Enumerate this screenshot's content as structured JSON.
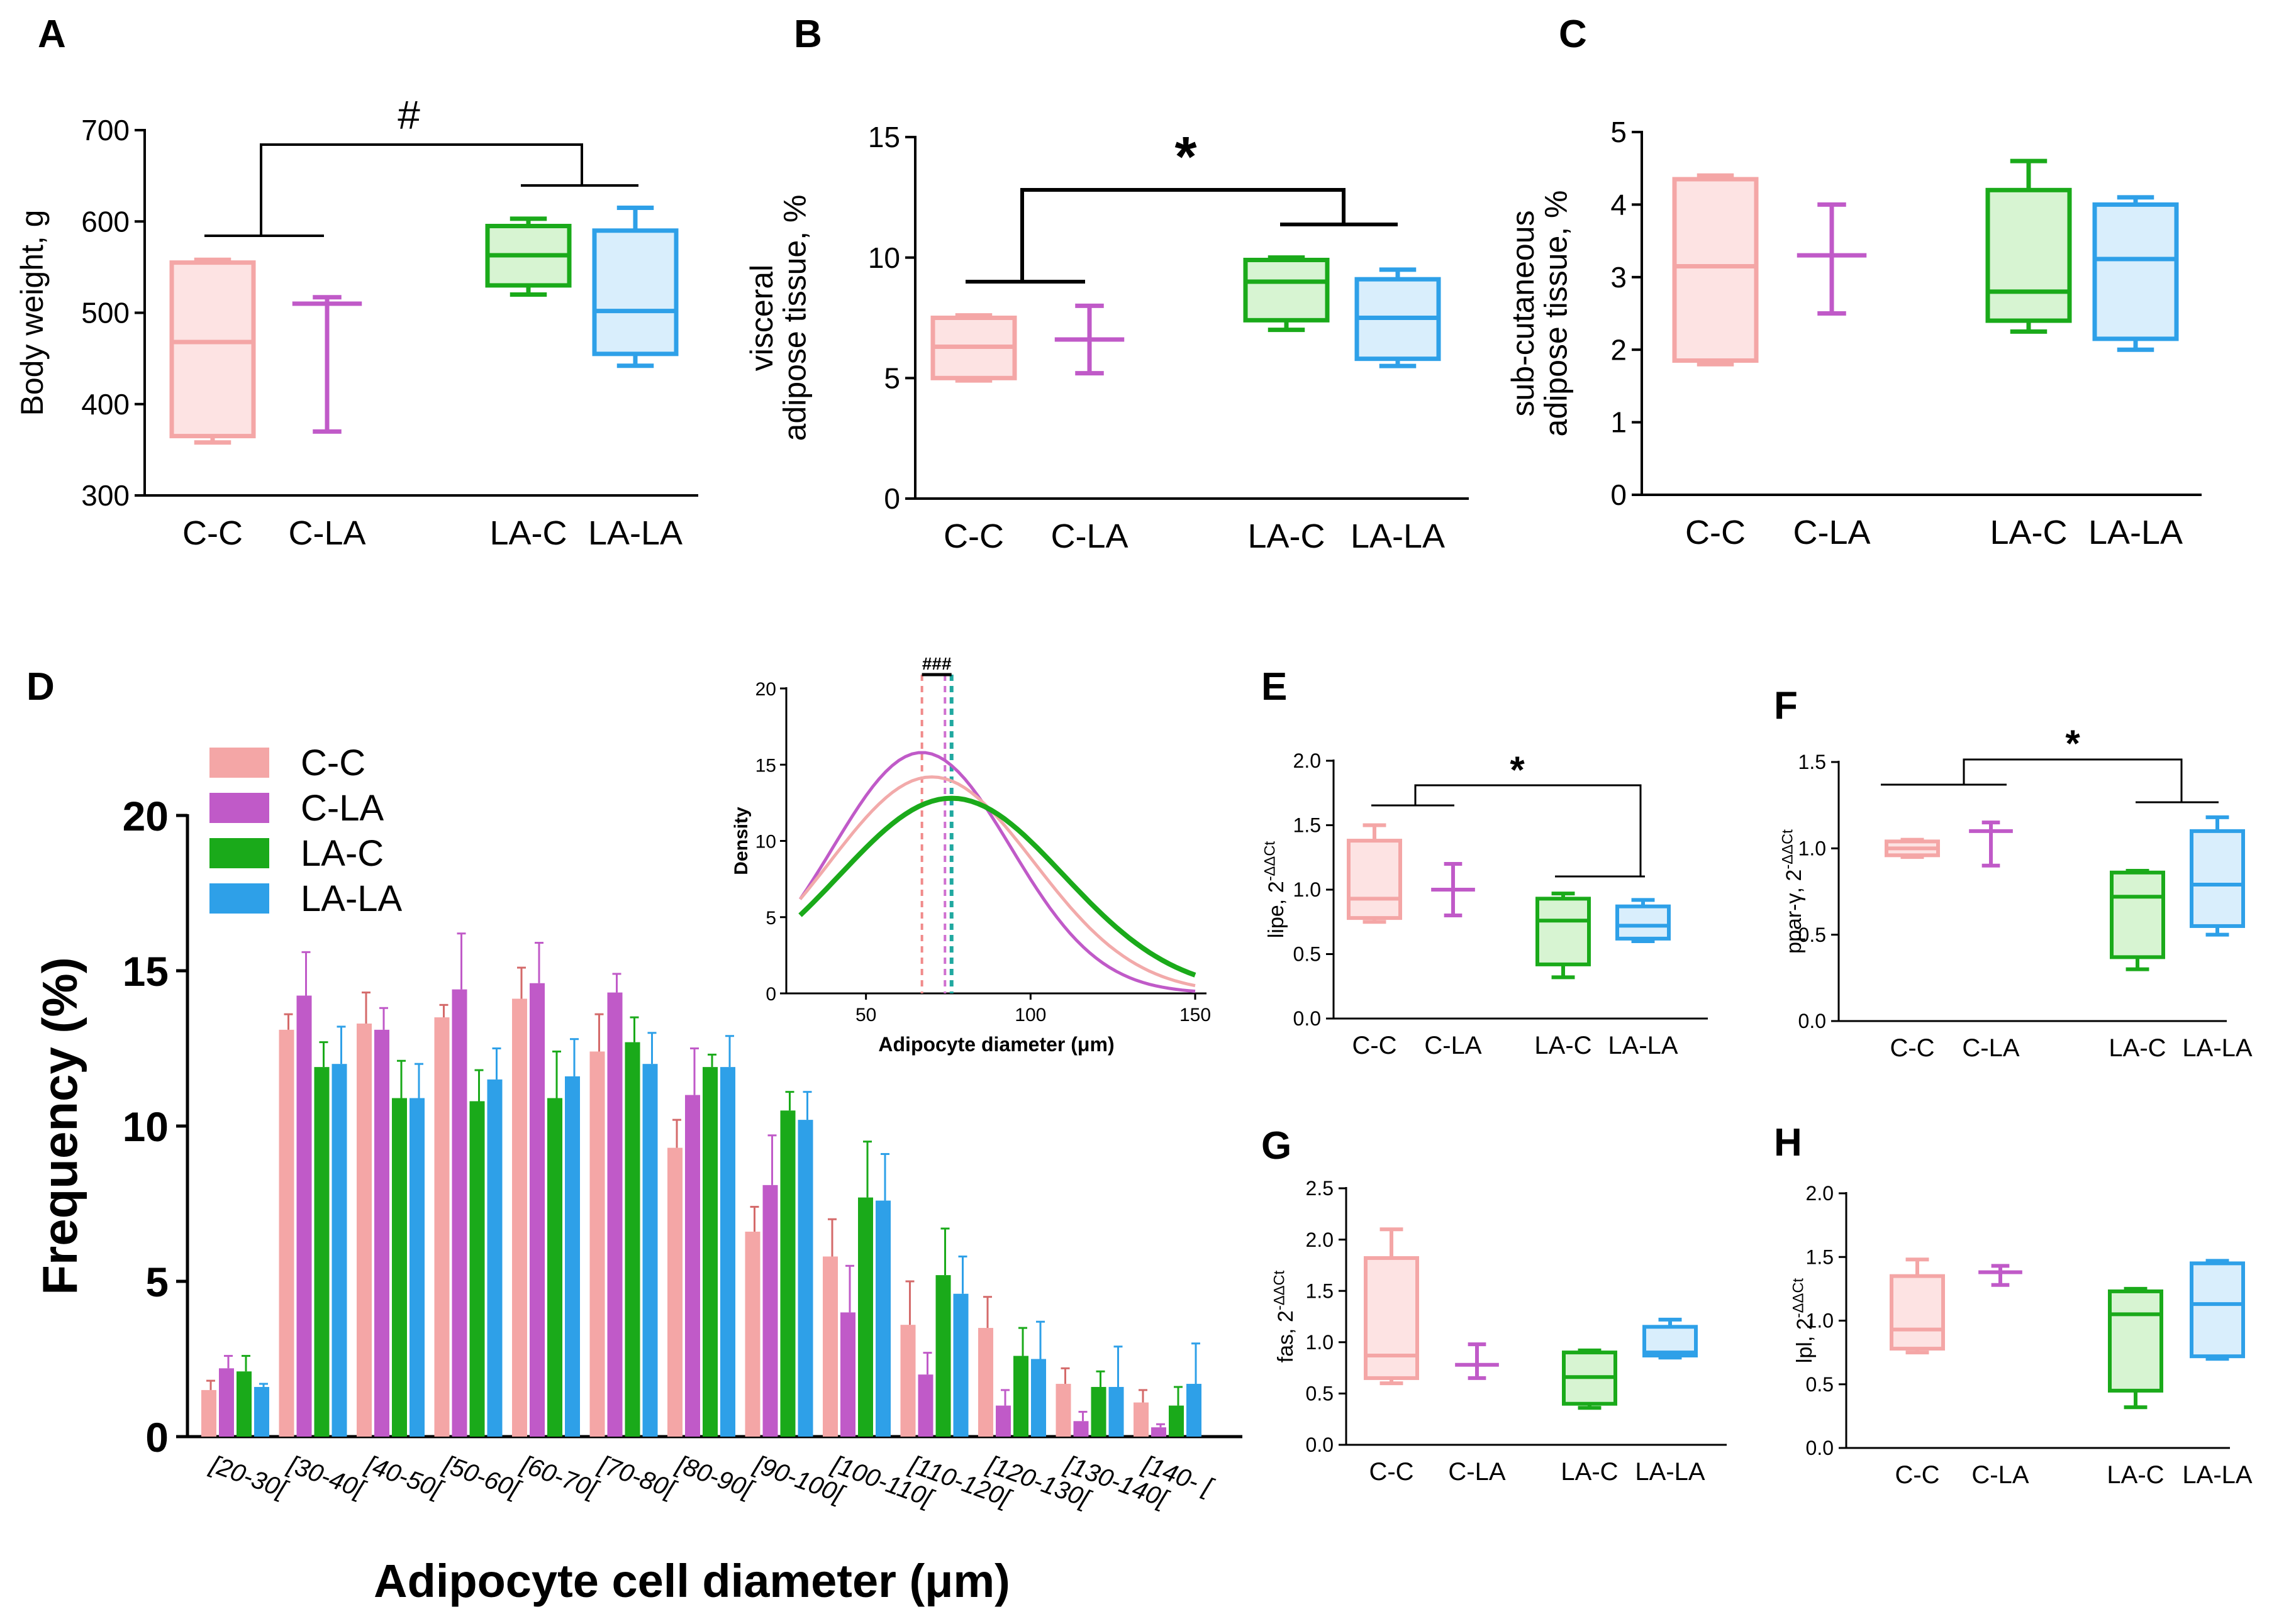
{
  "colors": {
    "CC": "#f4a6a6",
    "CLA": "#c05ac8",
    "LAC": "#1aaa1a",
    "LALA": "#2ea0e8",
    "CCfill": "#fde3e3",
    "LACfill": "#d7f4d2",
    "LALAfill": "#d9eefc"
  },
  "chart_data": [
    {
      "id": "A",
      "panel_label": "A",
      "type": "box",
      "ylabel": "Body weight, g",
      "ylim": [
        300,
        700
      ],
      "yticks": [
        "300",
        "400",
        "500",
        "600",
        "700"
      ],
      "groups": [
        {
          "name": "C-C",
          "min": 358,
          "q1": 365,
          "median": 468,
          "q3": 555,
          "max": 558
        },
        {
          "name": "C-LA",
          "min": 370,
          "q1": 510,
          "median": 510,
          "q3": 510,
          "max": 517
        },
        {
          "name": "LA-C",
          "min": 520,
          "q1": 530,
          "median": 563,
          "q3": 595,
          "max": 603
        },
        {
          "name": "LA-LA",
          "min": 442,
          "q1": 455,
          "median": 502,
          "q3": 590,
          "max": 615
        }
      ],
      "annotation": "#"
    },
    {
      "id": "B",
      "panel_label": "B",
      "type": "box",
      "ylabel_lines": [
        "visceral",
        "adipose tissue, %"
      ],
      "ylim": [
        0,
        15
      ],
      "yticks": [
        "0",
        "5",
        "10",
        "15"
      ],
      "groups": [
        {
          "name": "C-C",
          "min": 4.9,
          "q1": 5.0,
          "median": 6.3,
          "q3": 7.5,
          "max": 7.6
        },
        {
          "name": "C-LA",
          "min": 5.2,
          "q1": 6.6,
          "median": 6.6,
          "q3": 6.6,
          "max": 8.0
        },
        {
          "name": "LA-C",
          "min": 7.0,
          "q1": 7.4,
          "median": 9.0,
          "q3": 9.9,
          "max": 10.0
        },
        {
          "name": "LA-LA",
          "min": 5.5,
          "q1": 5.8,
          "median": 7.5,
          "q3": 9.1,
          "max": 9.5
        }
      ],
      "annotation": "*"
    },
    {
      "id": "C",
      "panel_label": "C",
      "type": "box",
      "ylabel_lines": [
        "sub-cutaneous",
        "adipose tissue, %"
      ],
      "ylim": [
        0,
        5
      ],
      "yticks": [
        "0",
        "1",
        "2",
        "3",
        "4",
        "5"
      ],
      "groups": [
        {
          "name": "C-C",
          "min": 1.8,
          "q1": 1.85,
          "median": 3.15,
          "q3": 4.35,
          "max": 4.4
        },
        {
          "name": "C-LA",
          "min": 2.5,
          "q1": 3.3,
          "median": 3.3,
          "q3": 3.3,
          "max": 4.0
        },
        {
          "name": "LA-C",
          "min": 2.25,
          "q1": 2.4,
          "median": 2.8,
          "q3": 4.2,
          "max": 4.6
        },
        {
          "name": "LA-LA",
          "min": 2.0,
          "q1": 2.15,
          "median": 3.25,
          "q3": 4.0,
          "max": 4.1
        }
      ]
    },
    {
      "id": "D",
      "panel_label": "D",
      "type": "bar",
      "xlabel": "Adipocyte cell diameter (μm)",
      "ylabel": "Frequency (%)",
      "ylim": [
        0,
        20
      ],
      "yticks": [
        "0",
        "5",
        "10",
        "15",
        "20"
      ],
      "categories": [
        "[20-30[",
        "[30-40[",
        "[40-50[",
        "[50-60[",
        "[60-70[",
        "[70-80[",
        "[80-90[",
        "[90-100[",
        "[100-110[",
        "[110-120[",
        "[120-130[",
        "[130-140[",
        "[140- ["
      ],
      "series": [
        {
          "name": "C-C",
          "values": [
            1.5,
            13.1,
            13.3,
            13.5,
            14.1,
            12.4,
            9.3,
            6.6,
            5.8,
            3.6,
            3.5,
            1.7,
            1.1
          ],
          "errors": [
            0.3,
            0.5,
            1.0,
            0.4,
            1.0,
            1.2,
            0.9,
            0.8,
            1.2,
            1.4,
            1.0,
            0.5,
            0.4
          ]
        },
        {
          "name": "C-LA",
          "values": [
            2.2,
            14.2,
            13.1,
            14.4,
            14.6,
            14.3,
            11.0,
            8.1,
            4.0,
            2.0,
            1.0,
            0.5,
            0.3
          ],
          "errors": [
            0.4,
            1.4,
            0.7,
            1.8,
            1.3,
            0.6,
            1.5,
            1.6,
            1.5,
            0.7,
            0.5,
            0.3,
            0.1
          ]
        },
        {
          "name": "LA-C",
          "values": [
            2.1,
            11.9,
            10.9,
            10.8,
            10.9,
            12.7,
            11.9,
            10.5,
            7.7,
            5.2,
            2.6,
            1.6,
            1.0
          ],
          "errors": [
            0.5,
            0.8,
            1.2,
            1.0,
            1.5,
            0.8,
            0.4,
            0.6,
            1.8,
            1.5,
            0.9,
            0.5,
            0.6
          ]
        },
        {
          "name": "LA-LA",
          "values": [
            1.6,
            12.0,
            10.9,
            11.5,
            11.6,
            12.0,
            11.9,
            10.2,
            7.6,
            4.6,
            2.5,
            1.6,
            1.7
          ],
          "errors": [
            0.1,
            1.2,
            1.1,
            1.0,
            1.2,
            1.0,
            1.0,
            0.9,
            1.5,
            1.2,
            1.2,
            1.3,
            1.3
          ]
        }
      ],
      "legend_labels": [
        "C-C",
        "C-LA",
        "LA-C",
        "LA-LA"
      ]
    },
    {
      "id": "D-inset",
      "type": "line",
      "xlabel": "Adipocyte diameter (μm)",
      "ylabel": "Density",
      "xlim": [
        30,
        150
      ],
      "ylim": [
        0,
        20
      ],
      "xticks": [
        "50",
        "100",
        "150"
      ],
      "yticks": [
        "0",
        "5",
        "10",
        "15",
        "20"
      ],
      "series": [
        {
          "name": "C-LA",
          "peak_x": 67,
          "peak_y": 15.8,
          "sigma": 27
        },
        {
          "name": "C-C",
          "peak_x": 70,
          "peak_y": 14.2,
          "sigma": 31
        },
        {
          "name": "LA-C",
          "peak_x": 76,
          "peak_y": 12.8,
          "sigma": 34
        }
      ],
      "mean_lines_x": [
        67,
        74,
        76
      ],
      "annotation": "###"
    },
    {
      "id": "E",
      "panel_label": "E",
      "type": "box",
      "ylabel_text": "lipe, 2",
      "ylabel_sup": "-ΔΔCt",
      "ylim": [
        0,
        2
      ],
      "yticks": [
        "0.0",
        "0.5",
        "1.0",
        "1.5",
        "2.0"
      ],
      "groups": [
        {
          "name": "C-C",
          "min": 0.75,
          "q1": 0.78,
          "median": 0.93,
          "q3": 1.38,
          "max": 1.5
        },
        {
          "name": "C-LA",
          "min": 0.8,
          "q1": 1.0,
          "median": 1.0,
          "q3": 1.0,
          "max": 1.2
        },
        {
          "name": "LA-C",
          "min": 0.32,
          "q1": 0.42,
          "median": 0.76,
          "q3": 0.93,
          "max": 0.97
        },
        {
          "name": "LA-LA",
          "min": 0.6,
          "q1": 0.62,
          "median": 0.72,
          "q3": 0.87,
          "max": 0.92
        }
      ],
      "annotation": "*"
    },
    {
      "id": "F",
      "panel_label": "F",
      "type": "box",
      "ylabel_text": "ppar-γ, 2",
      "ylabel_sup": "-ΔΔCt",
      "ylim": [
        0,
        1.5
      ],
      "yticks": [
        "0.0",
        "0.5",
        "1.0",
        "1.5"
      ],
      "groups": [
        {
          "name": "C-C",
          "min": 0.95,
          "q1": 0.96,
          "median": 1.0,
          "q3": 1.04,
          "max": 1.05
        },
        {
          "name": "C-LA",
          "min": 0.9,
          "q1": 1.1,
          "median": 1.1,
          "q3": 1.1,
          "max": 1.15
        },
        {
          "name": "LA-C",
          "min": 0.3,
          "q1": 0.37,
          "median": 0.72,
          "q3": 0.86,
          "max": 0.87
        },
        {
          "name": "LA-LA",
          "min": 0.5,
          "q1": 0.55,
          "median": 0.79,
          "q3": 1.1,
          "max": 1.18
        }
      ],
      "annotation": "*"
    },
    {
      "id": "G",
      "panel_label": "G",
      "type": "box",
      "ylabel_text": "fas, 2",
      "ylabel_sup": "-ΔΔCt",
      "ylim": [
        0,
        2.5
      ],
      "yticks": [
        "0.0",
        "0.5",
        "1.0",
        "1.5",
        "2.0",
        "2.5"
      ],
      "groups": [
        {
          "name": "C-C",
          "min": 0.6,
          "q1": 0.65,
          "median": 0.87,
          "q3": 1.82,
          "max": 2.1
        },
        {
          "name": "C-LA",
          "min": 0.65,
          "q1": 0.78,
          "median": 0.78,
          "q3": 0.78,
          "max": 0.98
        },
        {
          "name": "LA-C",
          "min": 0.36,
          "q1": 0.4,
          "median": 0.66,
          "q3": 0.9,
          "max": 0.92
        },
        {
          "name": "LA-LA",
          "min": 0.85,
          "q1": 0.87,
          "median": 0.9,
          "q3": 1.15,
          "max": 1.22
        }
      ]
    },
    {
      "id": "H",
      "panel_label": "H",
      "type": "box",
      "ylabel_text": "lpl, 2",
      "ylabel_sup": "-ΔΔCt",
      "ylim": [
        0,
        2
      ],
      "yticks": [
        "0.0",
        "0.5",
        "1.0",
        "1.5",
        "2.0"
      ],
      "groups": [
        {
          "name": "C-C",
          "min": 0.75,
          "q1": 0.78,
          "median": 0.93,
          "q3": 1.35,
          "max": 1.48
        },
        {
          "name": "C-LA",
          "min": 1.28,
          "q1": 1.38,
          "median": 1.38,
          "q3": 1.38,
          "max": 1.43
        },
        {
          "name": "LA-C",
          "min": 0.32,
          "q1": 0.45,
          "median": 1.05,
          "q3": 1.23,
          "max": 1.25
        },
        {
          "name": "LA-LA",
          "min": 0.7,
          "q1": 0.72,
          "median": 1.13,
          "q3": 1.45,
          "max": 1.47
        }
      ]
    }
  ]
}
